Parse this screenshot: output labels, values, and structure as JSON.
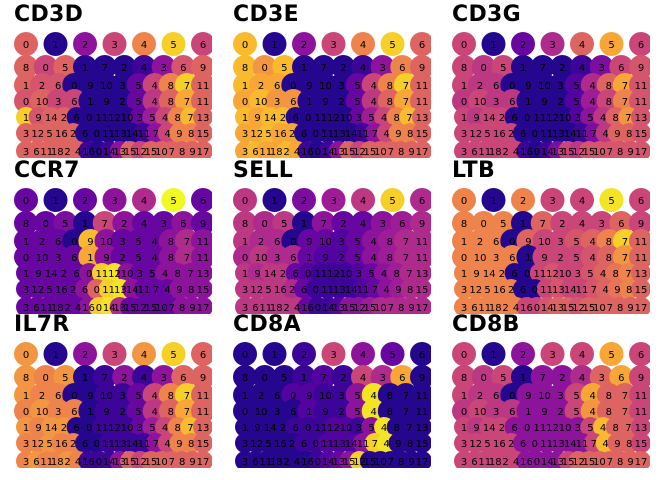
{
  "chart_data": {
    "type": "scatter",
    "colormap": [
      "#0d0887",
      "#5b02a3",
      "#9a179b",
      "#cb4678",
      "#eb7852",
      "#fbb32f",
      "#f0f921"
    ],
    "cluster_rows": [
      [
        "0",
        "1",
        "2",
        "3",
        "4",
        "5",
        "6"
      ],
      [
        "8",
        "0",
        "5",
        "1",
        "7",
        "2",
        "4",
        "3",
        "6",
        "9"
      ],
      [
        "1",
        "2",
        "6",
        "0",
        "9",
        "10",
        "3",
        "5",
        "4",
        "8",
        "7",
        "11"
      ],
      [
        "0",
        "10",
        "3",
        "6",
        "1",
        "9",
        "2",
        "5",
        "4",
        "8",
        "7",
        "11"
      ],
      [
        "1",
        "9",
        "14",
        "2",
        "6",
        "0",
        "11",
        "12",
        "10",
        "3",
        "5",
        "4",
        "8",
        "7",
        "13"
      ],
      [
        "3",
        "12",
        "5",
        "16",
        "2",
        "6",
        "0",
        "11",
        "13",
        "14",
        "11",
        "7",
        "4",
        "9",
        "8",
        "15"
      ],
      [
        "3",
        "6",
        "11",
        "18",
        "2",
        "4",
        "16",
        "0",
        "14",
        "13",
        "15",
        "12",
        "15",
        "10",
        "7",
        "8",
        "9",
        "17"
      ]
    ],
    "panels": [
      {
        "gene": "CD3D",
        "expression": [
          [
            0.6,
            0.05,
            0.3,
            0.5,
            0.7,
            0.9,
            0.5
          ],
          [
            0.6,
            0.5,
            0.6,
            0.05,
            0.05,
            0.05,
            0.1,
            0.3,
            0.55,
            0.6
          ],
          [
            0.6,
            0.55,
            0.55,
            0.05,
            0.05,
            0.05,
            0.05,
            0.2,
            0.5,
            0.7,
            0.9,
            0.6
          ],
          [
            0.55,
            0.6,
            0.5,
            0.5,
            0.05,
            0.05,
            0.05,
            0.2,
            0.45,
            0.6,
            0.8,
            0.6
          ],
          [
            0.9,
            0.55,
            0.6,
            0.6,
            0.05,
            0.05,
            0.05,
            0.05,
            0.05,
            0.2,
            0.35,
            0.5,
            0.7,
            0.85,
            0.6
          ],
          [
            0.6,
            0.6,
            0.6,
            0.6,
            0.6,
            0.05,
            0.05,
            0.05,
            0.05,
            0.05,
            0.1,
            0.3,
            0.5,
            0.7,
            0.7,
            0.6
          ],
          [
            0.6,
            0.6,
            0.6,
            0.6,
            0.6,
            0.6,
            0.1,
            0.05,
            0.1,
            0.3,
            0.6,
            0.5,
            0.6,
            0.6,
            0.6,
            0.6,
            0.6,
            0.6
          ]
        ]
      },
      {
        "gene": "CD3E",
        "expression": [
          [
            0.85,
            0.05,
            0.3,
            0.5,
            0.7,
            0.9,
            0.6
          ],
          [
            0.85,
            0.75,
            0.85,
            0.05,
            0.05,
            0.05,
            0.1,
            0.3,
            0.7,
            0.6
          ],
          [
            0.85,
            0.8,
            0.8,
            0.05,
            0.05,
            0.05,
            0.05,
            0.2,
            0.5,
            0.7,
            0.9,
            0.6
          ],
          [
            0.8,
            0.85,
            0.75,
            0.75,
            0.05,
            0.05,
            0.05,
            0.2,
            0.45,
            0.6,
            0.8,
            0.6
          ],
          [
            0.85,
            0.8,
            0.85,
            0.85,
            0.05,
            0.05,
            0.05,
            0.05,
            0.05,
            0.2,
            0.35,
            0.5,
            0.7,
            0.85,
            0.6
          ],
          [
            0.8,
            0.8,
            0.85,
            0.8,
            0.8,
            0.05,
            0.05,
            0.05,
            0.05,
            0.05,
            0.1,
            0.3,
            0.5,
            0.7,
            0.7,
            0.6
          ],
          [
            0.8,
            0.85,
            0.8,
            0.8,
            0.85,
            0.8,
            0.1,
            0.05,
            0.1,
            0.3,
            0.6,
            0.5,
            0.6,
            0.6,
            0.6,
            0.6,
            0.6,
            0.6
          ]
        ]
      },
      {
        "gene": "CD3G",
        "expression": [
          [
            0.5,
            0.05,
            0.2,
            0.4,
            0.6,
            0.8,
            0.5
          ],
          [
            0.5,
            0.45,
            0.5,
            0.05,
            0.05,
            0.05,
            0.1,
            0.25,
            0.5,
            0.55
          ],
          [
            0.5,
            0.45,
            0.45,
            0.05,
            0.05,
            0.05,
            0.05,
            0.15,
            0.4,
            0.6,
            0.8,
            0.55
          ],
          [
            0.45,
            0.5,
            0.45,
            0.45,
            0.05,
            0.05,
            0.05,
            0.15,
            0.35,
            0.5,
            0.7,
            0.55
          ],
          [
            0.5,
            0.45,
            0.5,
            0.5,
            0.05,
            0.05,
            0.05,
            0.05,
            0.05,
            0.15,
            0.3,
            0.45,
            0.6,
            0.75,
            0.55
          ],
          [
            0.5,
            0.5,
            0.5,
            0.5,
            0.5,
            0.05,
            0.05,
            0.05,
            0.05,
            0.05,
            0.1,
            0.25,
            0.45,
            0.6,
            0.6,
            0.55
          ],
          [
            0.5,
            0.5,
            0.5,
            0.5,
            0.5,
            0.5,
            0.1,
            0.05,
            0.1,
            0.25,
            0.5,
            0.45,
            0.55,
            0.55,
            0.55,
            0.55,
            0.55,
            0.55
          ]
        ]
      },
      {
        "gene": "CCR7",
        "expression": [
          [
            0.2,
            0.05,
            0.2,
            0.3,
            0.4,
            1.0,
            0.2
          ],
          [
            0.2,
            0.2,
            0.25,
            0.05,
            0.5,
            0.3,
            0.2,
            0.2,
            0.3,
            0.2
          ],
          [
            0.2,
            0.2,
            0.2,
            0.05,
            0.85,
            0.3,
            0.2,
            0.2,
            0.2,
            0.3,
            0.4,
            0.3
          ],
          [
            0.2,
            0.2,
            0.2,
            0.2,
            0.8,
            0.3,
            0.2,
            0.2,
            0.2,
            0.3,
            0.4,
            0.3
          ],
          [
            0.2,
            0.2,
            0.2,
            0.2,
            0.2,
            0.3,
            0.9,
            0.95,
            0.3,
            0.2,
            0.2,
            0.3,
            0.3,
            0.3,
            0.3
          ],
          [
            0.2,
            0.2,
            0.2,
            0.2,
            0.2,
            0.3,
            0.6,
            0.9,
            0.95,
            0.3,
            0.2,
            0.2,
            0.2,
            0.3,
            0.3,
            0.3
          ],
          [
            0.2,
            0.2,
            0.2,
            0.2,
            0.2,
            0.2,
            0.3,
            0.9,
            0.95,
            0.4,
            0.2,
            0.2,
            0.2,
            0.2,
            0.2,
            0.3,
            0.3,
            0.3
          ]
        ]
      },
      {
        "gene": "SELL",
        "expression": [
          [
            0.45,
            0.05,
            0.25,
            0.35,
            0.45,
            0.9,
            0.4
          ],
          [
            0.45,
            0.4,
            0.45,
            0.05,
            0.3,
            0.2,
            0.2,
            0.3,
            0.35,
            0.4
          ],
          [
            0.45,
            0.4,
            0.4,
            0.05,
            0.2,
            0.2,
            0.15,
            0.2,
            0.3,
            0.35,
            0.4,
            0.4
          ],
          [
            0.4,
            0.45,
            0.4,
            0.4,
            0.2,
            0.15,
            0.15,
            0.2,
            0.3,
            0.35,
            0.4,
            0.4
          ],
          [
            0.45,
            0.4,
            0.45,
            0.45,
            0.2,
            0.15,
            0.1,
            0.1,
            0.1,
            0.15,
            0.2,
            0.3,
            0.35,
            0.4,
            0.4
          ],
          [
            0.45,
            0.45,
            0.45,
            0.45,
            0.4,
            0.2,
            0.1,
            0.1,
            0.1,
            0.1,
            0.15,
            0.2,
            0.3,
            0.35,
            0.4,
            0.4
          ],
          [
            0.45,
            0.45,
            0.45,
            0.45,
            0.45,
            0.45,
            0.2,
            0.1,
            0.1,
            0.15,
            0.3,
            0.3,
            0.35,
            0.4,
            0.4,
            0.4,
            0.4,
            0.4
          ]
        ]
      },
      {
        "gene": "LTB",
        "expression": [
          [
            0.7,
            0.05,
            0.7,
            0.5,
            0.5,
            0.95,
            0.5
          ],
          [
            0.7,
            0.7,
            0.7,
            0.05,
            0.6,
            0.5,
            0.5,
            0.5,
            0.6,
            0.5
          ],
          [
            0.7,
            0.7,
            0.7,
            0.05,
            0.6,
            0.5,
            0.5,
            0.55,
            0.6,
            0.7,
            0.9,
            0.6
          ],
          [
            0.7,
            0.7,
            0.7,
            0.7,
            0.05,
            0.5,
            0.5,
            0.5,
            0.55,
            0.6,
            0.75,
            0.6
          ],
          [
            0.7,
            0.7,
            0.7,
            0.7,
            0.05,
            0.05,
            0.5,
            0.55,
            0.5,
            0.5,
            0.55,
            0.6,
            0.65,
            0.7,
            0.6
          ],
          [
            0.7,
            0.7,
            0.7,
            0.7,
            0.7,
            0.05,
            0.05,
            0.5,
            0.55,
            0.5,
            0.5,
            0.55,
            0.6,
            0.65,
            0.7,
            0.6
          ],
          [
            0.7,
            0.7,
            0.7,
            0.7,
            0.7,
            0.7,
            0.5,
            0.5,
            0.55,
            0.6,
            0.6,
            0.55,
            0.6,
            0.6,
            0.6,
            0.6,
            0.6,
            0.6
          ]
        ]
      },
      {
        "gene": "IL7R",
        "expression": [
          [
            0.75,
            0.05,
            0.3,
            0.5,
            0.75,
            0.9,
            0.6
          ],
          [
            0.75,
            0.7,
            0.75,
            0.05,
            0.1,
            0.3,
            0.1,
            0.3,
            0.6,
            0.6
          ],
          [
            0.75,
            0.7,
            0.7,
            0.05,
            0.05,
            0.1,
            0.1,
            0.2,
            0.5,
            0.7,
            0.9,
            0.6
          ],
          [
            0.7,
            0.75,
            0.7,
            0.7,
            0.05,
            0.1,
            0.1,
            0.2,
            0.45,
            0.6,
            0.8,
            0.6
          ],
          [
            0.75,
            0.7,
            0.75,
            0.75,
            0.05,
            0.05,
            0.1,
            0.1,
            0.1,
            0.2,
            0.35,
            0.5,
            0.7,
            0.85,
            0.6
          ],
          [
            0.7,
            0.7,
            0.75,
            0.7,
            0.7,
            0.05,
            0.05,
            0.1,
            0.1,
            0.1,
            0.1,
            0.3,
            0.5,
            0.7,
            0.7,
            0.6
          ],
          [
            0.7,
            0.75,
            0.7,
            0.7,
            0.75,
            0.7,
            0.1,
            0.1,
            0.1,
            0.3,
            0.6,
            0.5,
            0.6,
            0.6,
            0.6,
            0.6,
            0.6,
            0.6
          ]
        ]
      },
      {
        "gene": "CD8A",
        "expression": [
          [
            0.05,
            0.05,
            0.1,
            0.5,
            0.3,
            0.2,
            0.05
          ],
          [
            0.05,
            0.05,
            0.05,
            0.1,
            0.15,
            0.1,
            0.5,
            0.4,
            0.8,
            0.05
          ],
          [
            0.05,
            0.05,
            0.05,
            0.15,
            0.15,
            0.1,
            0.1,
            0.3,
            0.95,
            0.05,
            0.05,
            0.05
          ],
          [
            0.05,
            0.05,
            0.05,
            0.05,
            0.15,
            0.1,
            0.1,
            0.3,
            0.95,
            0.05,
            0.05,
            0.05
          ],
          [
            0.05,
            0.05,
            0.05,
            0.05,
            0.1,
            0.1,
            0.1,
            0.15,
            0.15,
            0.1,
            0.3,
            0.95,
            0.05,
            0.05,
            0.05
          ],
          [
            0.05,
            0.05,
            0.05,
            0.05,
            0.05,
            0.1,
            0.1,
            0.15,
            0.15,
            0.15,
            0.3,
            0.9,
            0.95,
            0.05,
            0.05,
            0.05
          ],
          [
            0.05,
            0.05,
            0.05,
            0.05,
            0.05,
            0.05,
            0.05,
            0.1,
            0.15,
            0.2,
            0.3,
            0.9,
            0.05,
            0.05,
            0.05,
            0.05,
            0.05,
            0.05
          ]
        ]
      },
      {
        "gene": "CD8B",
        "expression": [
          [
            0.5,
            0.05,
            0.3,
            0.5,
            0.5,
            0.8,
            0.5
          ],
          [
            0.5,
            0.45,
            0.5,
            0.05,
            0.3,
            0.3,
            0.4,
            0.6,
            0.8,
            0.5
          ],
          [
            0.5,
            0.45,
            0.45,
            0.05,
            0.3,
            0.3,
            0.3,
            0.5,
            0.8,
            0.6,
            0.6,
            0.5
          ],
          [
            0.45,
            0.5,
            0.45,
            0.45,
            0.3,
            0.3,
            0.3,
            0.5,
            0.75,
            0.6,
            0.6,
            0.5
          ],
          [
            0.5,
            0.45,
            0.5,
            0.5,
            0.3,
            0.3,
            0.3,
            0.3,
            0.3,
            0.3,
            0.5,
            0.85,
            0.6,
            0.6,
            0.5
          ],
          [
            0.5,
            0.5,
            0.5,
            0.5,
            0.5,
            0.3,
            0.3,
            0.3,
            0.3,
            0.3,
            0.3,
            0.5,
            0.85,
            0.6,
            0.6,
            0.5
          ],
          [
            0.5,
            0.5,
            0.5,
            0.5,
            0.5,
            0.5,
            0.3,
            0.3,
            0.3,
            0.3,
            0.5,
            0.6,
            0.6,
            0.6,
            0.6,
            0.6,
            0.6,
            0.6
          ]
        ]
      }
    ]
  }
}
